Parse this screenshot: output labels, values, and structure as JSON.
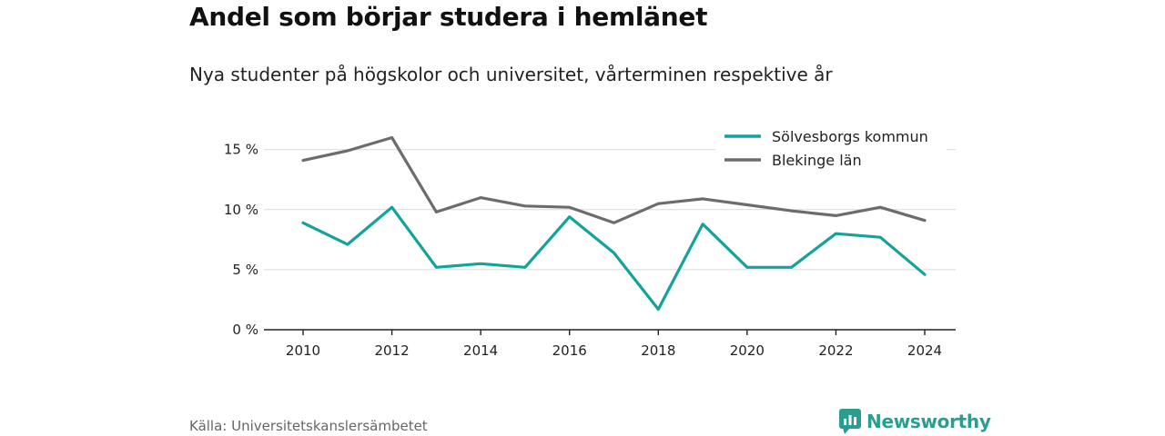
{
  "title": "Andel som börjar studera i hemlänet",
  "subtitle": "Nya studenter på högskolor och universitet, vårterminen respektive år",
  "source": "Källa: Universitetskanslersämbetet",
  "brand": {
    "name": "Newsworthy",
    "icon": "newsworthy-logo-icon",
    "color": "#2a9d8f"
  },
  "chart_data": {
    "type": "line",
    "title": "Andel som börjar studera i hemlänet",
    "subtitle": "Nya studenter på högskolor och universitet, vårterminen respektive år",
    "x": [
      2010,
      2011,
      2012,
      2013,
      2014,
      2015,
      2016,
      2017,
      2018,
      2019,
      2020,
      2021,
      2022,
      2023,
      2024
    ],
    "x_ticks": [
      "2010",
      "2012",
      "2014",
      "2016",
      "2018",
      "2020",
      "2022",
      "2024"
    ],
    "y_ticks": [
      "0 %",
      "5 %",
      "10 %",
      "15 %"
    ],
    "y_tick_values": [
      0,
      5,
      10,
      15
    ],
    "ylim": [
      0,
      16.5
    ],
    "grid": "horizontal",
    "legend_position": "top-right",
    "series": [
      {
        "name": "Sölvesborgs kommun",
        "color": "#13a39a",
        "values": [
          8.9,
          7.1,
          10.2,
          5.2,
          5.5,
          5.2,
          9.4,
          6.4,
          1.7,
          8.8,
          5.2,
          5.2,
          8.0,
          7.7,
          4.6
        ]
      },
      {
        "name": "Blekinge län",
        "color": "#6d6b70",
        "values": [
          14.1,
          14.9,
          16.0,
          9.8,
          11.0,
          10.3,
          10.2,
          8.9,
          10.5,
          10.9,
          10.4,
          9.9,
          9.5,
          10.2,
          9.1
        ]
      }
    ]
  }
}
